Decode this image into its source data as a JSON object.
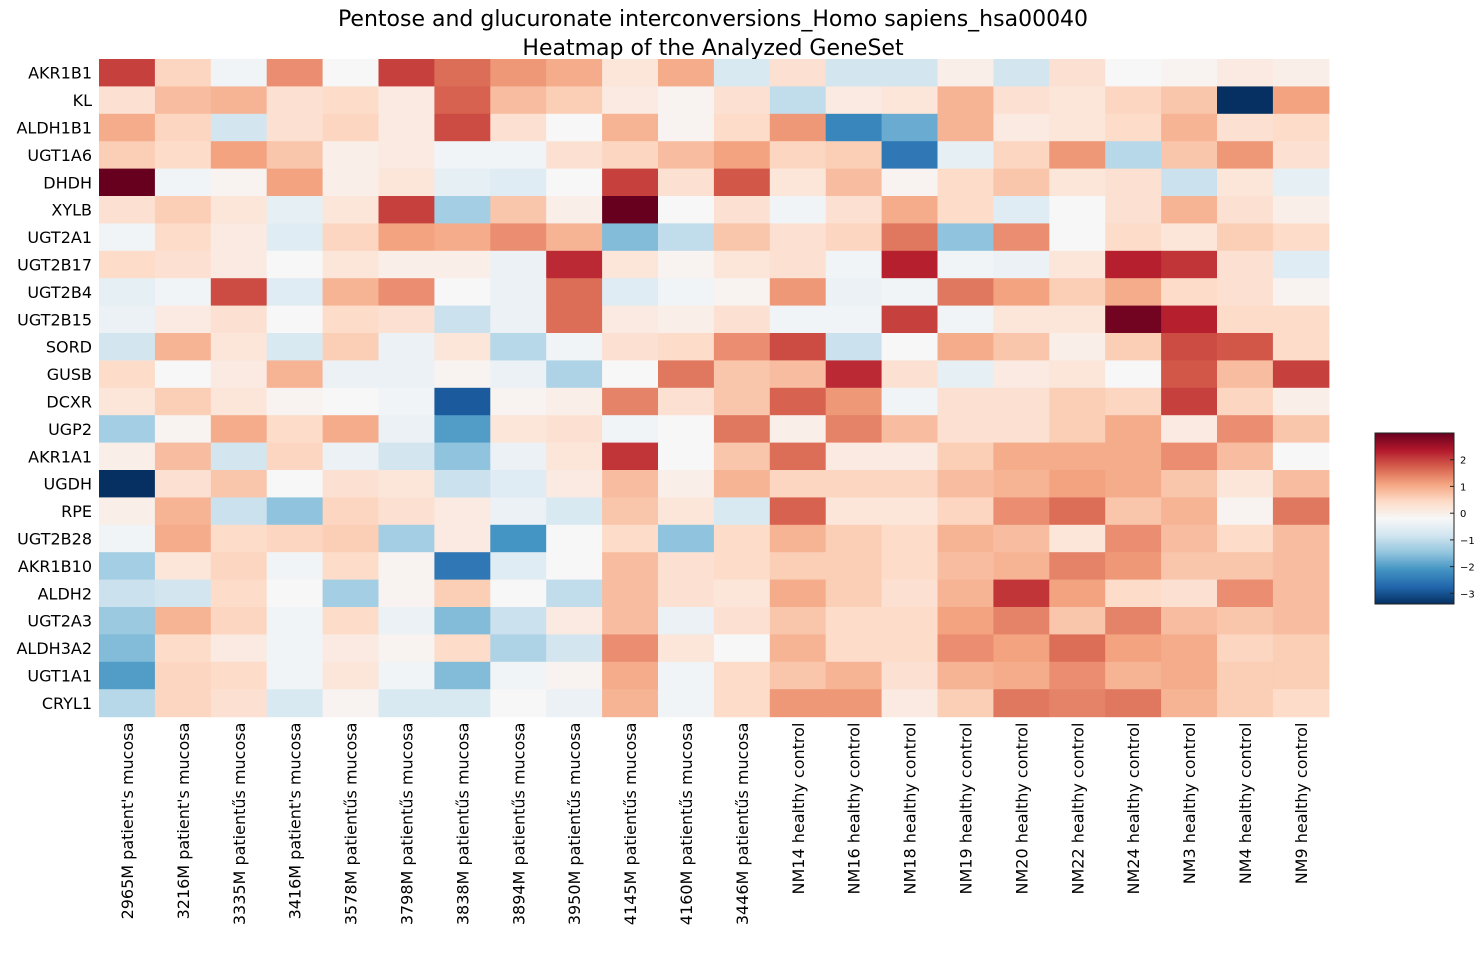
{
  "chart_data": {
    "type": "heatmap",
    "title": [
      "Pentose and glucuronate interconversions_Homo sapiens_hsa00040",
      "Heatmap of the Analyzed GeneSet"
    ],
    "rows": [
      "AKR1B1",
      "KL",
      "ALDH1B1",
      "UGT1A6",
      "DHDH",
      "XYLB",
      "UGT2A1",
      "UGT2B17",
      "UGT2B4",
      "UGT2B15",
      "SORD",
      "GUSB",
      "DCXR",
      "UGP2",
      "AKR1A1",
      "UGDH",
      "RPE",
      "UGT2B28",
      "AKR1B10",
      "ALDH2",
      "UGT2A3",
      "ALDH3A2",
      "UGT1A1",
      "CRYL1"
    ],
    "columns": [
      "2965M patient's mucosa",
      "3216M patient's mucosa",
      "3335M patientűs mucosa",
      "3416M patient's mucosa",
      "3578M patientűs mucosa",
      "3798M patientűs mucosa",
      "3838M patientűs mucosa",
      "3894M patientűs mucosa",
      "3950M patientűs mucosa",
      "4145M patientűs mucosa",
      "4160M patientűs mucosa",
      "3446M patientűs mucosa",
      "NM14 healthy control",
      "NM16 healthy control",
      "NM18 healthy control",
      "NM19 healthy control",
      "NM20 healthy control",
      "NM22 healthy control",
      "NM24 healthy control",
      "NM3 healthy control",
      "NM4 healthy control",
      "NM9 healthy control"
    ],
    "values": [
      [
        2.0,
        0.5,
        -0.3,
        1.3,
        -0.2,
        2.0,
        1.6,
        1.2,
        1.0,
        0.2,
        1.0,
        -0.7,
        0.3,
        -0.8,
        -0.8,
        0.0,
        -0.8,
        0.3,
        -0.2,
        -0.1,
        0.1,
        0.0
      ],
      [
        0.3,
        0.8,
        0.9,
        0.3,
        0.4,
        0.1,
        1.7,
        0.8,
        0.6,
        0.1,
        -0.1,
        0.3,
        -1.0,
        0.1,
        0.2,
        0.9,
        0.3,
        0.2,
        0.5,
        0.7,
        -3.4,
        1.1
      ],
      [
        1.0,
        0.5,
        -0.8,
        0.3,
        0.5,
        0.1,
        1.9,
        0.3,
        -0.2,
        0.9,
        -0.1,
        0.4,
        1.2,
        -2.3,
        -1.8,
        0.9,
        0.1,
        0.2,
        0.4,
        0.9,
        0.3,
        0.4
      ],
      [
        0.6,
        0.4,
        1.1,
        0.7,
        0.0,
        0.1,
        -0.3,
        -0.3,
        0.3,
        0.5,
        0.8,
        1.1,
        0.5,
        0.6,
        -2.5,
        -0.5,
        0.5,
        1.2,
        -1.1,
        0.7,
        1.2,
        0.3
      ],
      [
        3.0,
        -0.3,
        -0.1,
        1.1,
        0.0,
        0.2,
        -0.5,
        -0.6,
        -0.2,
        2.0,
        0.3,
        1.8,
        0.2,
        0.8,
        -0.1,
        0.4,
        0.7,
        0.2,
        0.3,
        -0.9,
        0.2,
        -0.5
      ],
      [
        0.3,
        0.6,
        0.2,
        -0.5,
        0.2,
        2.0,
        -1.3,
        0.7,
        0.0,
        3.0,
        -0.2,
        0.3,
        -0.3,
        0.3,
        1.0,
        0.4,
        -0.6,
        -0.2,
        0.3,
        0.9,
        0.3,
        0.0
      ],
      [
        -0.3,
        0.4,
        0.1,
        -0.6,
        0.5,
        1.1,
        1.0,
        1.3,
        0.9,
        -1.6,
        -1.0,
        0.7,
        0.3,
        0.5,
        1.5,
        -1.5,
        1.3,
        -0.2,
        0.4,
        0.2,
        0.6,
        0.4
      ],
      [
        0.4,
        0.3,
        0.1,
        -0.2,
        0.2,
        0.0,
        0.0,
        -0.4,
        2.2,
        0.2,
        -0.1,
        0.2,
        0.3,
        -0.3,
        2.3,
        -0.3,
        -0.4,
        0.2,
        2.3,
        2.1,
        0.3,
        -0.6
      ],
      [
        -0.5,
        -0.3,
        1.9,
        -0.6,
        0.9,
        1.3,
        -0.2,
        -0.4,
        1.6,
        -0.6,
        -0.3,
        -0.1,
        1.2,
        -0.4,
        -0.3,
        1.5,
        1.1,
        0.6,
        1.0,
        0.4,
        0.3,
        -0.1
      ],
      [
        -0.4,
        0.1,
        0.3,
        -0.2,
        0.4,
        0.3,
        -0.9,
        -0.4,
        1.6,
        0.1,
        0.0,
        0.3,
        -0.3,
        -0.3,
        2.0,
        -0.3,
        0.2,
        0.2,
        2.9,
        2.3,
        0.4,
        0.4
      ],
      [
        -0.8,
        0.9,
        0.2,
        -0.7,
        0.6,
        -0.4,
        0.2,
        -1.1,
        -0.3,
        0.3,
        0.4,
        1.3,
        1.9,
        -0.9,
        -0.2,
        1.0,
        0.7,
        0.0,
        0.6,
        1.9,
        1.8,
        0.4
      ],
      [
        0.4,
        -0.2,
        0.1,
        0.9,
        -0.4,
        -0.4,
        -0.1,
        -0.4,
        -1.2,
        -0.2,
        1.5,
        0.7,
        0.8,
        2.2,
        0.3,
        -0.5,
        0.1,
        0.2,
        -0.2,
        1.8,
        0.8,
        2.0
      ],
      [
        0.2,
        0.6,
        0.2,
        -0.1,
        -0.2,
        -0.3,
        -2.9,
        -0.1,
        0.0,
        1.4,
        0.3,
        0.7,
        1.7,
        1.2,
        -0.3,
        0.3,
        0.3,
        0.6,
        0.5,
        2.0,
        0.5,
        0.0
      ],
      [
        -1.3,
        -0.1,
        1.0,
        0.4,
        1.0,
        -0.4,
        -2.0,
        0.2,
        0.3,
        -0.3,
        -0.2,
        1.5,
        0.0,
        1.4,
        0.8,
        0.3,
        0.3,
        0.6,
        1.0,
        0.1,
        1.3,
        0.7
      ],
      [
        0.0,
        0.8,
        -0.8,
        0.5,
        -0.4,
        -0.8,
        -1.5,
        -0.4,
        0.2,
        2.1,
        -0.2,
        0.7,
        1.6,
        0.1,
        0.1,
        0.6,
        1.0,
        1.0,
        1.0,
        1.3,
        0.8,
        -0.2
      ],
      [
        -3.4,
        0.3,
        0.7,
        -0.2,
        0.3,
        0.2,
        -0.9,
        -0.6,
        0.1,
        0.8,
        0.0,
        0.9,
        0.5,
        0.5,
        0.5,
        0.8,
        0.9,
        1.1,
        1.0,
        0.7,
        0.2,
        0.8
      ],
      [
        0.0,
        0.9,
        -0.9,
        -1.5,
        0.5,
        0.3,
        0.1,
        -0.4,
        -0.7,
        0.7,
        0.2,
        -0.7,
        1.7,
        0.2,
        0.2,
        0.5,
        1.3,
        1.6,
        0.7,
        0.9,
        -0.1,
        1.5
      ],
      [
        -0.3,
        1.0,
        0.4,
        0.5,
        0.6,
        -1.3,
        0.1,
        -2.1,
        -0.2,
        0.4,
        -1.5,
        0.4,
        0.9,
        0.6,
        0.4,
        0.9,
        0.8,
        0.2,
        1.3,
        0.8,
        0.4,
        0.8
      ],
      [
        -1.3,
        0.2,
        0.5,
        -0.3,
        0.4,
        -0.1,
        -2.5,
        -0.6,
        -0.2,
        0.8,
        0.3,
        0.4,
        0.6,
        0.6,
        0.4,
        0.8,
        0.9,
        1.4,
        1.2,
        0.7,
        0.7,
        0.8
      ],
      [
        -0.9,
        -0.8,
        0.4,
        -0.2,
        -1.3,
        -0.1,
        0.6,
        -0.2,
        -1.0,
        0.8,
        0.3,
        0.2,
        1.0,
        0.6,
        0.3,
        0.9,
        2.1,
        1.1,
        0.4,
        0.3,
        1.3,
        0.8
      ],
      [
        -1.4,
        0.9,
        0.5,
        -0.3,
        0.4,
        -0.4,
        -1.6,
        -0.9,
        0.1,
        0.8,
        -0.4,
        0.3,
        0.7,
        0.4,
        0.4,
        1.1,
        1.4,
        0.7,
        1.4,
        0.8,
        0.7,
        0.8
      ],
      [
        -1.6,
        0.4,
        0.1,
        -0.3,
        0.1,
        -0.1,
        0.4,
        -1.2,
        -0.8,
        1.3,
        0.2,
        -0.2,
        0.9,
        0.4,
        0.4,
        1.3,
        1.1,
        1.6,
        1.1,
        1.0,
        0.5,
        0.6
      ],
      [
        -2.0,
        0.5,
        0.4,
        -0.3,
        0.2,
        -0.3,
        -1.6,
        -0.3,
        -0.1,
        1.0,
        -0.3,
        0.4,
        0.7,
        0.9,
        0.3,
        0.9,
        1.0,
        1.3,
        0.9,
        1.0,
        0.6,
        0.6
      ],
      [
        -1.1,
        0.5,
        0.3,
        -0.7,
        -0.1,
        -0.7,
        -0.7,
        -0.2,
        -0.4,
        0.9,
        -0.3,
        0.4,
        1.2,
        1.2,
        0.1,
        0.6,
        1.5,
        1.4,
        1.5,
        0.9,
        0.6,
        0.4
      ]
    ],
    "colormap": "RdBu_r",
    "vmin": -3.4,
    "vmax": 3.0,
    "colorbar_ticks": [
      2,
      1,
      0,
      -1,
      -2,
      -3
    ],
    "colorbar_tick_labels": [
      "2",
      "1",
      "0",
      "−1",
      "−2",
      "−3"
    ],
    "grid": false,
    "legend": "colorbar right"
  }
}
